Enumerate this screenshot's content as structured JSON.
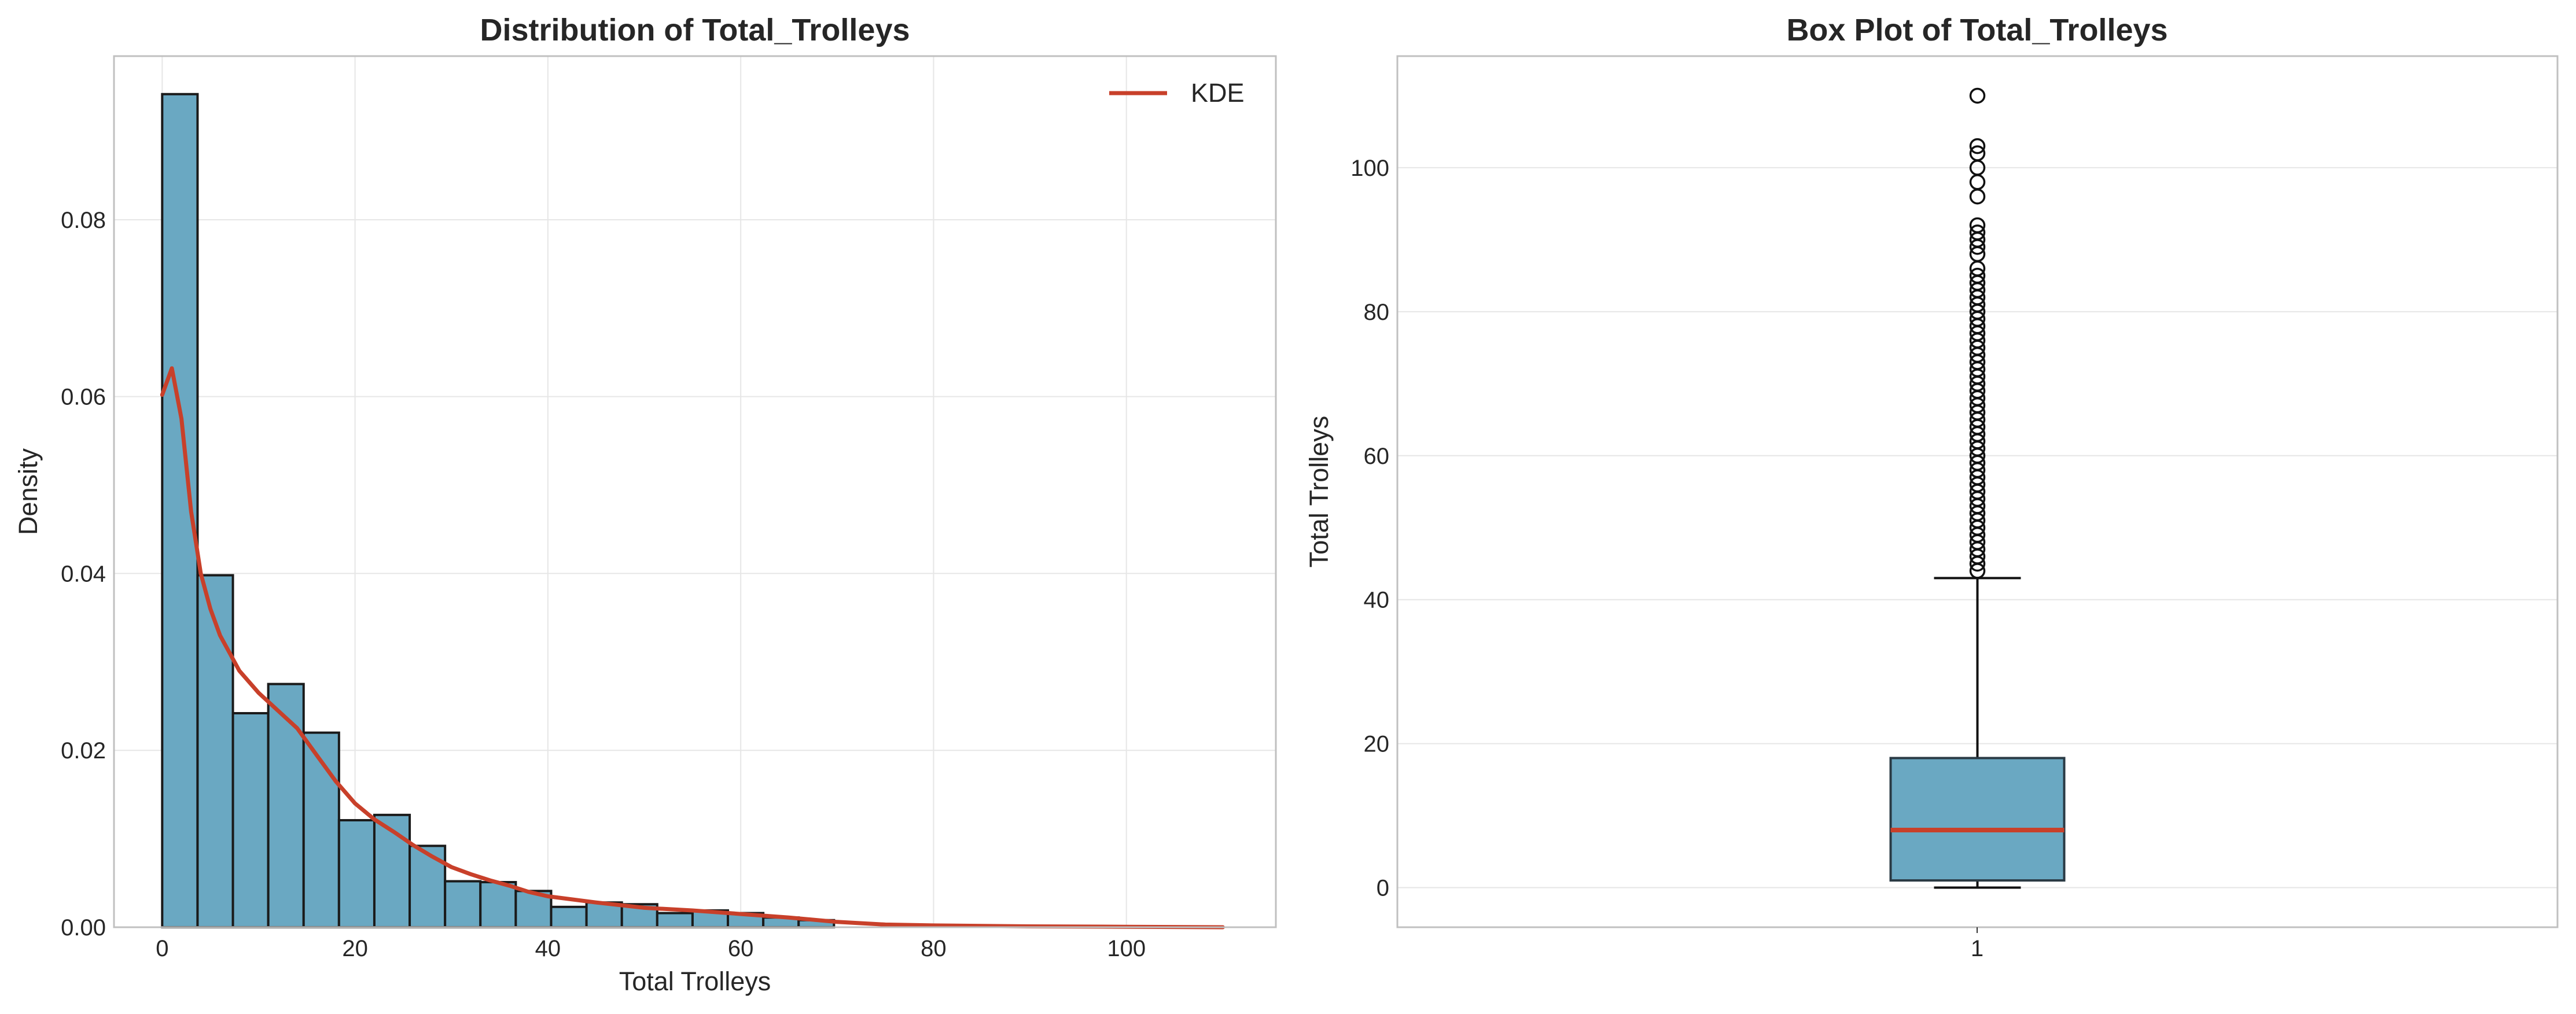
{
  "colors": {
    "bar_fill": "#6aa8c2",
    "bar_edge": "#1a1a1a",
    "kde": "#c8402a",
    "median": "#c8402a",
    "grid": "#e6e6e6",
    "spine": "#c0c0c0"
  },
  "chart_data": [
    {
      "type": "bar",
      "subtype": "histogram",
      "title": "Distribution of Total_Trolleys",
      "xlabel": "Total Trolleys",
      "ylabel": "Density",
      "xlim": [
        -5,
        115.5
      ],
      "ylim": [
        0,
        0.0985
      ],
      "xticks": [
        0,
        20,
        40,
        60,
        80,
        100
      ],
      "xtick_labels": [
        "0",
        "20",
        "40",
        "60",
        "80",
        "100"
      ],
      "yticks": [
        0,
        0.02,
        0.04,
        0.06,
        0.08
      ],
      "ytick_labels": [
        "0.00",
        "0.02",
        "0.04",
        "0.06",
        "0.08"
      ],
      "grid": true,
      "bin_width": 3.667,
      "bin_start": 0,
      "values": [
        0.0942,
        0.0398,
        0.0242,
        0.0275,
        0.022,
        0.0121,
        0.0127,
        0.0092,
        0.0052,
        0.0051,
        0.0041,
        0.0023,
        0.0028,
        0.0026,
        0.0016,
        0.0019,
        0.0016,
        0.0011,
        0.0008
      ],
      "series": [
        {
          "name": "KDE",
          "type": "line",
          "x": [
            0,
            1,
            2,
            3,
            4,
            5,
            6,
            7,
            8,
            10,
            12,
            14,
            16,
            18,
            20,
            22,
            24,
            26,
            28,
            30,
            32,
            34,
            36,
            38,
            40,
            45,
            50,
            55,
            60,
            65,
            70,
            75,
            80,
            90,
            100,
            110
          ],
          "y": [
            0.0602,
            0.0632,
            0.0575,
            0.047,
            0.04,
            0.036,
            0.033,
            0.031,
            0.029,
            0.0265,
            0.0245,
            0.0225,
            0.0195,
            0.0165,
            0.014,
            0.0122,
            0.0108,
            0.0093,
            0.008,
            0.0068,
            0.006,
            0.0053,
            0.0047,
            0.004,
            0.0035,
            0.0028,
            0.0022,
            0.0019,
            0.0015,
            0.0011,
            0.0006,
            0.0003,
            0.0002,
            0.0001,
            5e-05,
            0.0
          ]
        }
      ],
      "legend": {
        "entries": [
          "KDE"
        ],
        "placement": "top-right"
      }
    },
    {
      "type": "box",
      "title": "Box Plot of Total_Trolleys",
      "ylabel": "Total Trolleys",
      "xlabel": "",
      "categories": [
        "1"
      ],
      "ylim": [
        -5.5,
        115.5
      ],
      "yticks": [
        0,
        20,
        40,
        60,
        80,
        100
      ],
      "ytick_labels": [
        "0",
        "20",
        "40",
        "60",
        "80",
        "100"
      ],
      "grid": true,
      "box": {
        "whisker_low": 0,
        "q1": 1,
        "median": 8,
        "q3": 18,
        "whisker_high": 43
      },
      "outliers": [
        44,
        45,
        46,
        47,
        48,
        49,
        50,
        51,
        52,
        53,
        54,
        55,
        56,
        57,
        58,
        59,
        60,
        61,
        62,
        63,
        64,
        65,
        66,
        67,
        68,
        69,
        70,
        71,
        72,
        73,
        74,
        75,
        76,
        77,
        78,
        79,
        80,
        81,
        82,
        83,
        84,
        85,
        86,
        88,
        89,
        90,
        91,
        92,
        96,
        98,
        100,
        102,
        103,
        110
      ]
    }
  ]
}
